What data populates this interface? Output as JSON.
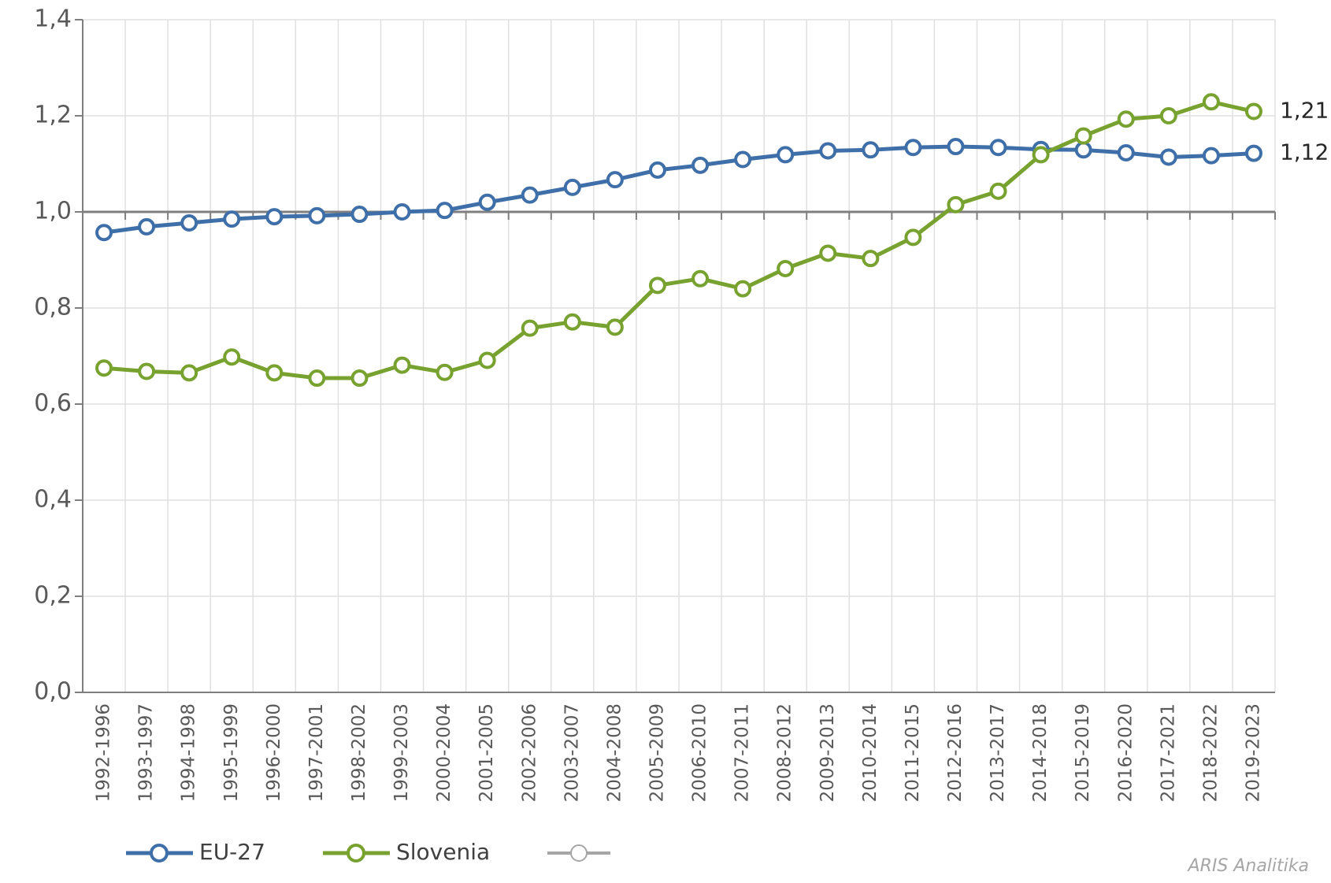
{
  "chart_data": {
    "type": "line",
    "categories": [
      "1992-1996",
      "1993-1997",
      "1994-1998",
      "1995-1999",
      "1996-2000",
      "1997-2001",
      "1998-2002",
      "1999-2003",
      "2000-2004",
      "2001-2005",
      "2002-2006",
      "2003-2007",
      "2004-2008",
      "2005-2009",
      "2006-2010",
      "2007-2011",
      "2008-2012",
      "2009-2013",
      "2010-2014",
      "2011-2015",
      "2012-2016",
      "2013-2017",
      "2014-2018",
      "2015-2019",
      "2016-2020",
      "2017-2021",
      "2018-2022",
      "2019-2023"
    ],
    "series": [
      {
        "name": "EU-27",
        "color": "#3f6fa8",
        "end_label": "1,12",
        "values": [
          0.957,
          0.969,
          0.977,
          0.985,
          0.99,
          0.992,
          0.995,
          1.0,
          1.003,
          1.02,
          1.035,
          1.051,
          1.067,
          1.087,
          1.097,
          1.109,
          1.119,
          1.127,
          1.129,
          1.134,
          1.136,
          1.134,
          1.13,
          1.129,
          1.123,
          1.114,
          1.117,
          1.122
        ]
      },
      {
        "name": "Slovenia",
        "color": "#78a22f",
        "end_label": "1,21",
        "values": [
          0.675,
          0.668,
          0.665,
          0.698,
          0.665,
          0.654,
          0.654,
          0.681,
          0.666,
          0.691,
          0.758,
          0.771,
          0.76,
          0.847,
          0.861,
          0.84,
          0.882,
          0.914,
          0.903,
          0.947,
          1.015,
          1.043,
          1.119,
          1.158,
          1.193,
          1.2,
          1.229,
          1.209
        ]
      }
    ],
    "ylim": [
      0,
      1.4
    ],
    "yticks": [
      {
        "value": 0,
        "label": "0,0"
      },
      {
        "value": 0.2,
        "label": "0,2"
      },
      {
        "value": 0.4,
        "label": "0,4"
      },
      {
        "value": 0.6,
        "label": "0,6"
      },
      {
        "value": 0.8,
        "label": "0,8"
      },
      {
        "value": 1.0,
        "label": "1,0"
      },
      {
        "value": 1.2,
        "label": "1,2"
      },
      {
        "value": 1.4,
        "label": "1,4"
      }
    ],
    "x_axis_crosses": 1.0,
    "grid": true,
    "watermark": "ARIS Analitika"
  }
}
